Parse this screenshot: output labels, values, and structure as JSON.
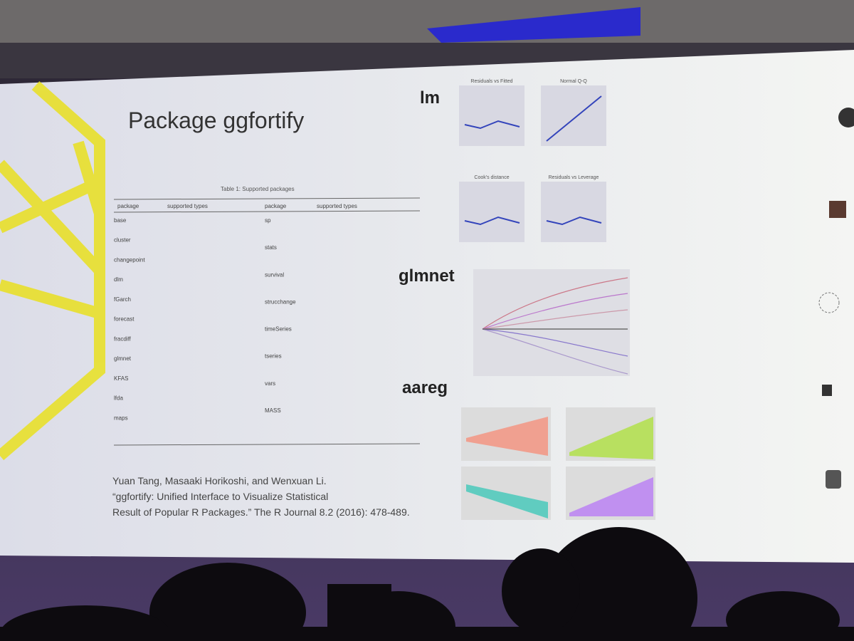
{
  "slide": {
    "title": "Package ggfortify",
    "table": {
      "caption": "Table 1: Supported packages",
      "headers": [
        "package",
        "supported types",
        "package",
        "supported types"
      ],
      "left_packages": [
        "base",
        "cluster",
        "changepoint",
        "dlm",
        "fGarch",
        "forecast",
        "fracdiff",
        "glmnet",
        "KFAS",
        "lfda",
        "maps"
      ],
      "right_packages": [
        "sp",
        "stats",
        "survival",
        "strucchange",
        "timeSeries",
        "tseries",
        "vars",
        "MASS"
      ]
    },
    "plots": {
      "lm": {
        "label": "lm",
        "panels": [
          "Residuals vs Fitted",
          "Normal Q-Q",
          "Cook's distance",
          "Residuals vs Leverage"
        ]
      },
      "glmnet": {
        "label": "glmnet"
      },
      "aareg": {
        "label": "aareg"
      }
    },
    "citation": [
      "Yuan Tang, Masaaki Horikoshi, and Wenxuan Li.",
      "“ggfortify: Unified Interface to Visualize Statistical",
      "Result of Popular R Packages.” The R Journal 8.2 (2016): 478-489."
    ]
  }
}
